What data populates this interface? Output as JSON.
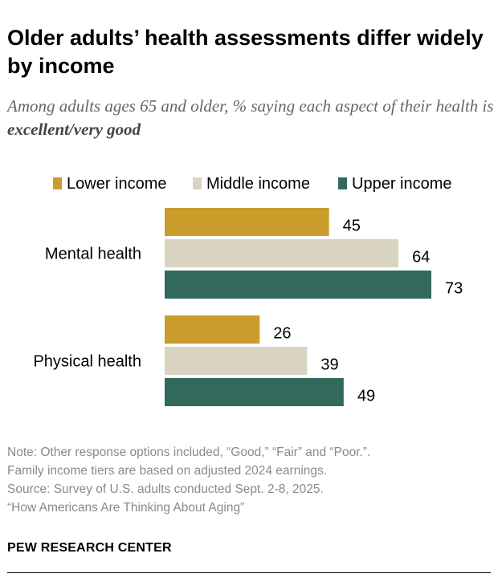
{
  "title": "Older adults’ health assessments differ widely by income",
  "subtitle_prefix": "Among adults ages 65 and older, % saying each aspect of their health is ",
  "subtitle_emphasis": "excellent/very good",
  "chart_data": {
    "type": "bar",
    "orientation": "horizontal",
    "categories": [
      "Mental health",
      "Physical health"
    ],
    "series": [
      {
        "name": "Lower income",
        "color": "#C99C2C",
        "values": [
          45,
          26
        ]
      },
      {
        "name": "Middle income",
        "color": "#D9D3C1",
        "values": [
          64,
          39
        ]
      },
      {
        "name": "Upper income",
        "color": "#316A5D",
        "values": [
          73,
          49
        ]
      }
    ],
    "xlim": [
      0,
      100
    ],
    "grid": false,
    "legend": "top",
    "data_labels": true
  },
  "notes": [
    "Note: Other response options included, “Good,” “Fair” and “Poor.”.",
    "Family income tiers are based on adjusted 2024 earnings.",
    "Source: Survey of U.S. adults conducted Sept. 2-8, 2025.",
    "“How Americans Are Thinking About Aging”"
  ],
  "logo": "PEW RESEARCH CENTER"
}
